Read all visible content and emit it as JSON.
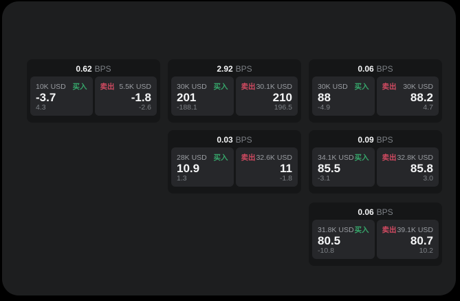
{
  "labels": {
    "bps_unit": "BPS",
    "buy": "买入",
    "sell": "卖出"
  },
  "colors": {
    "page_bg": "#000000",
    "window_bg": "#1d1e1f",
    "card_bg": "#151617",
    "panel_bg": "#26272a",
    "buy_green": "#36a56a",
    "sell_red": "#d04a61",
    "text_primary": "#f5f6f7",
    "text_secondary": "#9a9da2",
    "text_tertiary": "#7d8186"
  },
  "cards": [
    {
      "bps": "0.62",
      "buy": {
        "amount": "10K USD",
        "value": "-3.7",
        "sub": "4.3"
      },
      "sell": {
        "amount": "5.5K USD",
        "value": "-1.8",
        "sub": "-2.6"
      }
    },
    {
      "bps": "2.92",
      "buy": {
        "amount": "30K USD",
        "value": "201",
        "sub": "-188.1"
      },
      "sell": {
        "amount": "30.1K USD",
        "value": "210",
        "sub": "196.5"
      }
    },
    {
      "bps": "0.06",
      "buy": {
        "amount": "30K USD",
        "value": "88",
        "sub": "-4.9"
      },
      "sell": {
        "amount": "30K USD",
        "value": "88.2",
        "sub": "4.7"
      }
    },
    {
      "bps": "0.03",
      "buy": {
        "amount": "28K USD",
        "value": "10.9",
        "sub": "1.3"
      },
      "sell": {
        "amount": "32.6K USD",
        "value": "11",
        "sub": "-1.8"
      }
    },
    {
      "bps": "0.09",
      "buy": {
        "amount": "34.1K USD",
        "value": "85.5",
        "sub": "-3.1"
      },
      "sell": {
        "amount": "32.8K USD",
        "value": "85.8",
        "sub": "3.0"
      }
    },
    {
      "bps": "0.06",
      "buy": {
        "amount": "31.8K USD",
        "value": "80.5",
        "sub": "-10.8"
      },
      "sell": {
        "amount": "39.1K USD",
        "value": "80.7",
        "sub": "10.2"
      }
    }
  ]
}
